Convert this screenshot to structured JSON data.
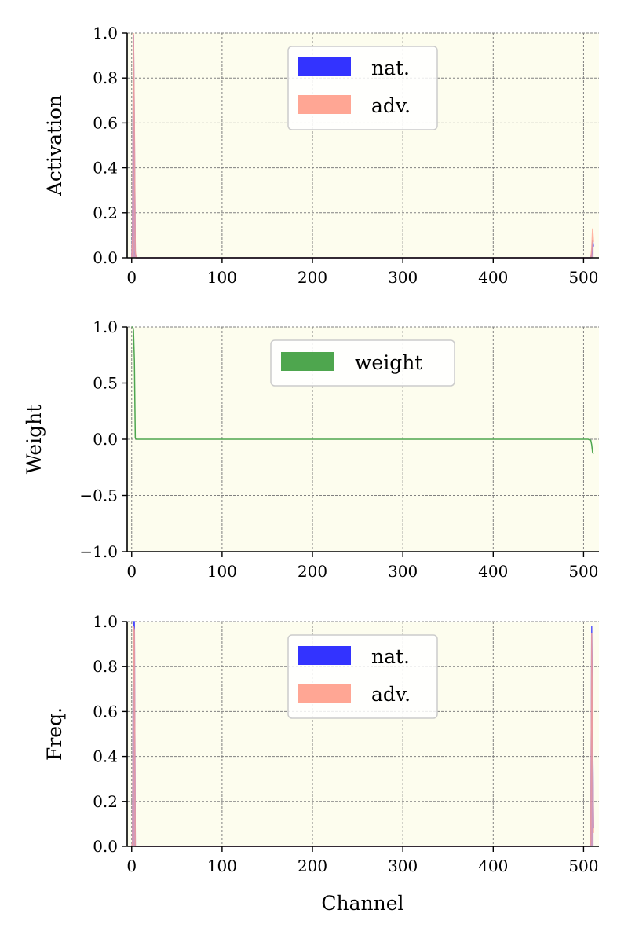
{
  "colors": {
    "nat": "#3333ff",
    "adv": "#ffa694",
    "weight": "#4ea64e",
    "panel_bg": "#fdfdee",
    "grid": "#808080",
    "overlap": "#8c3f8c"
  },
  "chart_data": [
    {
      "type": "area",
      "ylabel": "Activation",
      "xlabel": "",
      "xlim": [
        -5,
        517
      ],
      "ylim": [
        0,
        1
      ],
      "xticks": [
        0,
        100,
        200,
        300,
        400,
        500
      ],
      "yticks": [
        0,
        0.2,
        0.4,
        0.6,
        0.8,
        1.0
      ],
      "ytick_labels": [
        "0.0",
        "0.2",
        "0.4",
        "0.6",
        "0.8",
        "1.0"
      ],
      "grid": true,
      "legend_position": "top-center",
      "series": [
        {
          "name": "nat.",
          "color_key": "nat",
          "x": [
            0,
            1,
            2,
            3,
            4,
            5,
            6,
            508,
            509,
            510,
            511
          ],
          "y": [
            0,
            0.12,
            0.99,
            0.55,
            0.02,
            0,
            0,
            0,
            0.02,
            0.08,
            0.05
          ]
        },
        {
          "name": "adv.",
          "color_key": "adv",
          "x": [
            0,
            1,
            2,
            3,
            4,
            5,
            6,
            508,
            509,
            510,
            511
          ],
          "y": [
            0,
            0.1,
            1.0,
            0.6,
            0.03,
            0,
            0,
            0,
            0.04,
            0.13,
            0.07
          ]
        }
      ]
    },
    {
      "type": "line",
      "ylabel": "Weight",
      "xlabel": "",
      "xlim": [
        -5,
        517
      ],
      "ylim": [
        -1,
        1
      ],
      "xticks": [
        0,
        100,
        200,
        300,
        400,
        500
      ],
      "yticks": [
        -1.0,
        -0.5,
        0.0,
        0.5,
        1.0
      ],
      "ytick_labels": [
        "−1.0",
        "−0.5",
        "0.0",
        "0.5",
        "1.0"
      ],
      "grid": true,
      "legend_position": "top-center",
      "series": [
        {
          "name": "weight",
          "color_key": "weight",
          "x": [
            0,
            1,
            2,
            3,
            4,
            5,
            6,
            100,
            300,
            505,
            508,
            509,
            510,
            511
          ],
          "y": [
            1.0,
            1.0,
            0.97,
            0.7,
            0.01,
            0,
            0,
            0,
            0,
            0,
            -0.01,
            -0.05,
            -0.12,
            -0.13
          ]
        }
      ]
    },
    {
      "type": "area",
      "ylabel": "Freq.",
      "xlabel": "Channel",
      "xlim": [
        -5,
        517
      ],
      "ylim": [
        0,
        1
      ],
      "xticks": [
        0,
        100,
        200,
        300,
        400,
        500
      ],
      "yticks": [
        0,
        0.2,
        0.4,
        0.6,
        0.8,
        1.0
      ],
      "ytick_labels": [
        "0.0",
        "0.2",
        "0.4",
        "0.6",
        "0.8",
        "1.0"
      ],
      "grid": true,
      "legend_position": "top-center",
      "series": [
        {
          "name": "nat.",
          "color_key": "nat",
          "x": [
            0,
            1,
            2,
            3,
            4,
            5,
            507,
            508,
            509,
            510,
            511
          ],
          "y": [
            0,
            0.02,
            1.0,
            1.0,
            0,
            0,
            0,
            0.02,
            0.98,
            0.5,
            0.08
          ]
        },
        {
          "name": "adv.",
          "color_key": "adv",
          "x": [
            0,
            1,
            2,
            3,
            4,
            5,
            507,
            508,
            509,
            510,
            511
          ],
          "y": [
            0,
            0.02,
            0.98,
            0.96,
            0,
            0,
            0,
            0.02,
            0.95,
            0.47,
            0.06
          ]
        }
      ]
    }
  ]
}
